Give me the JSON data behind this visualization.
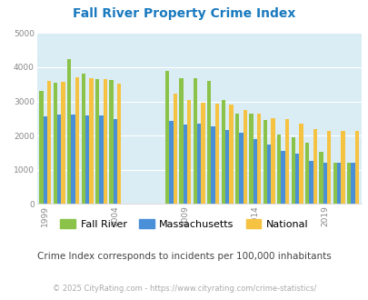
{
  "title": "Fall River Property Crime Index",
  "subtitle": "Crime Index corresponds to incidents per 100,000 inhabitants",
  "footer": "© 2025 CityRating.com - https://www.cityrating.com/crime-statistics/",
  "years": [
    1999,
    2000,
    2001,
    2002,
    2003,
    2004,
    2008,
    2009,
    2010,
    2011,
    2012,
    2013,
    2014,
    2015,
    2016,
    2017,
    2018,
    2019,
    2020,
    2021
  ],
  "fall_river": [
    3300,
    3550,
    4250,
    3800,
    3650,
    3620,
    3900,
    3670,
    3670,
    3600,
    3050,
    2650,
    2650,
    2450,
    2020,
    1950,
    1800,
    1520,
    1200,
    1200
  ],
  "massachusetts": [
    2560,
    2620,
    2620,
    2600,
    2590,
    2490,
    2440,
    2330,
    2340,
    2280,
    2160,
    2080,
    1900,
    1730,
    1560,
    1480,
    1270,
    1220,
    1220,
    1210
  ],
  "national": [
    3610,
    3560,
    3700,
    3680,
    3650,
    3510,
    3230,
    3050,
    2970,
    2940,
    2900,
    2750,
    2650,
    2500,
    2470,
    2360,
    2200,
    2150,
    2130,
    2130
  ],
  "fall_river_color": "#8bc34a",
  "massachusetts_color": "#4a90d9",
  "national_color": "#f5c242",
  "bg_color": "#daedf4",
  "title_color": "#1a7abf",
  "subtitle_color": "#444444",
  "footer_color": "#aaaaaa",
  "ylim": [
    0,
    5000
  ],
  "yticks": [
    0,
    1000,
    2000,
    3000,
    4000,
    5000
  ],
  "bar_width": 0.28,
  "label_years": [
    1999,
    2004,
    2009,
    2014,
    2019
  ],
  "legend_labels": [
    "Fall River",
    "Massachusetts",
    "National"
  ]
}
